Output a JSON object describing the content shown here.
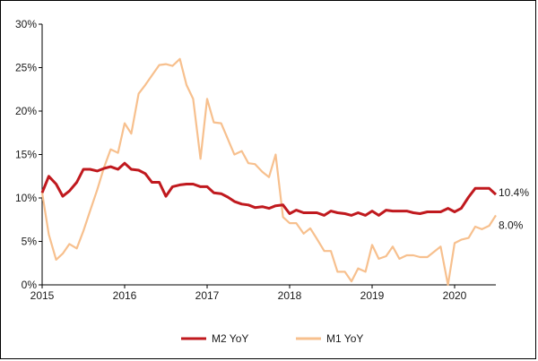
{
  "chart_data": {
    "type": "line",
    "title": "",
    "xlabel": "",
    "ylabel": "",
    "xlim": [
      2015.0,
      2020.5
    ],
    "ylim": [
      0,
      30
    ],
    "y_ticks": [
      "0%",
      "5%",
      "10%",
      "15%",
      "20%",
      "25%",
      "30%"
    ],
    "x_ticks": [
      "2015",
      "2016",
      "2017",
      "2018",
      "2019",
      "2020"
    ],
    "grid": false,
    "legend": "bottom",
    "series": [
      {
        "name": "M2 YoY",
        "color": "#c0191e",
        "end_label": "10.4%",
        "x": [
          2015.0,
          2015.08,
          2015.17,
          2015.25,
          2015.33,
          2015.42,
          2015.5,
          2015.58,
          2015.67,
          2015.75,
          2015.83,
          2015.92,
          2016.0,
          2016.08,
          2016.17,
          2016.25,
          2016.33,
          2016.42,
          2016.5,
          2016.58,
          2016.67,
          2016.75,
          2016.83,
          2016.92,
          2017.0,
          2017.08,
          2017.17,
          2017.25,
          2017.33,
          2017.42,
          2017.5,
          2017.58,
          2017.67,
          2017.75,
          2017.83,
          2017.92,
          2018.0,
          2018.08,
          2018.17,
          2018.25,
          2018.33,
          2018.42,
          2018.5,
          2018.58,
          2018.67,
          2018.75,
          2018.83,
          2018.92,
          2019.0,
          2019.08,
          2019.17,
          2019.25,
          2019.33,
          2019.42,
          2019.5,
          2019.58,
          2019.67,
          2019.75,
          2019.83,
          2019.92,
          2020.0,
          2020.08,
          2020.17,
          2020.25,
          2020.33,
          2020.42,
          2020.5
        ],
        "values": [
          10.6,
          12.5,
          11.6,
          10.2,
          10.8,
          11.8,
          13.3,
          13.3,
          13.1,
          13.4,
          13.6,
          13.3,
          14.0,
          13.3,
          13.2,
          12.8,
          11.8,
          11.8,
          10.2,
          11.3,
          11.5,
          11.6,
          11.6,
          11.3,
          11.3,
          10.6,
          10.5,
          10.1,
          9.6,
          9.3,
          9.2,
          8.9,
          9.0,
          8.8,
          9.1,
          9.2,
          8.2,
          8.6,
          8.3,
          8.3,
          8.3,
          8.0,
          8.5,
          8.3,
          8.2,
          8.0,
          8.3,
          8.0,
          8.5,
          8.0,
          8.6,
          8.5,
          8.5,
          8.5,
          8.3,
          8.2,
          8.4,
          8.4,
          8.4,
          8.8,
          8.4,
          8.8,
          10.1,
          11.1,
          11.1,
          11.1,
          10.4
        ]
      },
      {
        "name": "M1 YoY",
        "color": "#f7c08e",
        "end_label": "8.0%",
        "x": [
          2015.0,
          2015.08,
          2015.17,
          2015.25,
          2015.33,
          2015.42,
          2015.5,
          2015.58,
          2015.67,
          2015.75,
          2015.83,
          2015.92,
          2016.0,
          2016.08,
          2016.17,
          2016.25,
          2016.33,
          2016.42,
          2016.5,
          2016.58,
          2016.67,
          2016.75,
          2016.83,
          2016.92,
          2017.0,
          2017.08,
          2017.17,
          2017.25,
          2017.33,
          2017.42,
          2017.5,
          2017.58,
          2017.67,
          2017.75,
          2017.83,
          2017.92,
          2018.0,
          2018.08,
          2018.17,
          2018.25,
          2018.33,
          2018.42,
          2018.5,
          2018.58,
          2018.67,
          2018.75,
          2018.83,
          2018.92,
          2019.0,
          2019.08,
          2019.17,
          2019.25,
          2019.33,
          2019.42,
          2019.5,
          2019.58,
          2019.67,
          2019.75,
          2019.83,
          2019.92,
          2020.0,
          2020.08,
          2020.17,
          2020.25,
          2020.33,
          2020.42,
          2020.5
        ],
        "values": [
          10.6,
          5.8,
          2.9,
          3.6,
          4.7,
          4.2,
          6.2,
          8.5,
          11.0,
          13.5,
          15.6,
          15.2,
          18.6,
          17.4,
          22.0,
          23.0,
          24.1,
          25.3,
          25.4,
          25.2,
          26.0,
          23.0,
          21.4,
          14.5,
          21.4,
          18.7,
          18.6,
          16.8,
          15.0,
          15.4,
          14.0,
          13.9,
          13.0,
          12.4,
          15.0,
          7.8,
          7.1,
          7.1,
          5.9,
          6.5,
          5.3,
          3.9,
          3.9,
          1.5,
          1.5,
          0.4,
          1.9,
          1.5,
          4.6,
          3.0,
          3.3,
          4.4,
          3.0,
          3.4,
          3.4,
          3.2,
          3.2,
          3.8,
          4.4,
          0.0,
          4.8,
          5.2,
          5.4,
          6.7,
          6.4,
          6.8,
          8.0
        ]
      }
    ]
  }
}
